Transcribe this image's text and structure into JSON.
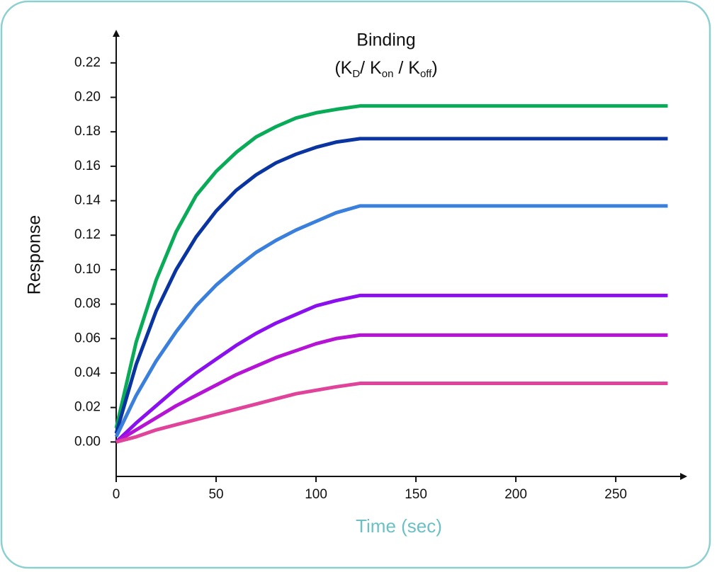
{
  "chart_data": {
    "type": "line",
    "title": "Binding",
    "subtitle": [
      "(K",
      "D",
      "/ K",
      "on",
      " / K",
      "off",
      ")"
    ],
    "x_label": "Time (sec)",
    "y_label": "Response",
    "x": [
      0,
      10,
      20,
      30,
      40,
      50,
      60,
      70,
      80,
      90,
      100,
      110,
      122,
      150,
      200,
      250,
      276
    ],
    "series": [
      {
        "color": "#0aab58",
        "values": [
          0.008,
          0.058,
          0.094,
          0.122,
          0.143,
          0.157,
          0.168,
          0.177,
          0.183,
          0.188,
          0.191,
          0.193,
          0.195,
          0.195,
          0.195,
          0.195,
          0.195
        ]
      },
      {
        "color": "#0a35a0",
        "values": [
          0.005,
          0.045,
          0.076,
          0.1,
          0.119,
          0.134,
          0.146,
          0.155,
          0.162,
          0.167,
          0.171,
          0.174,
          0.176,
          0.176,
          0.176,
          0.176,
          0.176
        ]
      },
      {
        "color": "#3a7fdc",
        "values": [
          0.003,
          0.027,
          0.047,
          0.064,
          0.079,
          0.091,
          0.101,
          0.11,
          0.117,
          0.123,
          0.128,
          0.133,
          0.137,
          0.137,
          0.137,
          0.137,
          0.137
        ]
      },
      {
        "color": "#8a10ee",
        "values": [
          0,
          0.011,
          0.021,
          0.031,
          0.04,
          0.048,
          0.056,
          0.063,
          0.069,
          0.074,
          0.079,
          0.082,
          0.085,
          0.085,
          0.085,
          0.085,
          0.085
        ]
      },
      {
        "color": "#b514d4",
        "values": [
          0,
          0.007,
          0.014,
          0.021,
          0.027,
          0.033,
          0.039,
          0.044,
          0.049,
          0.053,
          0.057,
          0.06,
          0.062,
          0.062,
          0.062,
          0.062,
          0.062
        ]
      },
      {
        "color": "#e0449a",
        "values": [
          0,
          0.003,
          0.007,
          0.01,
          0.013,
          0.016,
          0.019,
          0.022,
          0.025,
          0.028,
          0.03,
          0.032,
          0.034,
          0.034,
          0.034,
          0.034,
          0.034
        ]
      }
    ],
    "xlim": [
      0,
      284
    ],
    "ylim": [
      -0.02,
      0.238
    ],
    "xticks": [
      0,
      50,
      100,
      150,
      200,
      250
    ],
    "yticks": [
      {
        "value": 0,
        "label": "0.00"
      },
      {
        "value": 0.02,
        "label": "0.02"
      },
      {
        "value": 0.04,
        "label": "0.04"
      },
      {
        "value": 0.06,
        "label": "0.06"
      },
      {
        "value": 0.08,
        "label": "0.08"
      },
      {
        "value": 0.1,
        "label": "0.10"
      },
      {
        "value": 0.12,
        "label": "0.12"
      },
      {
        "value": 0.14,
        "label": "0.14"
      },
      {
        "value": 0.16,
        "label": "0.16"
      },
      {
        "value": 0.18,
        "label": "0.18"
      },
      {
        "value": 0.2,
        "label": "0.20"
      },
      {
        "value": 0.22,
        "label": "0.22"
      }
    ],
    "grid": false,
    "axis_label_color": "#6cc0c4"
  }
}
